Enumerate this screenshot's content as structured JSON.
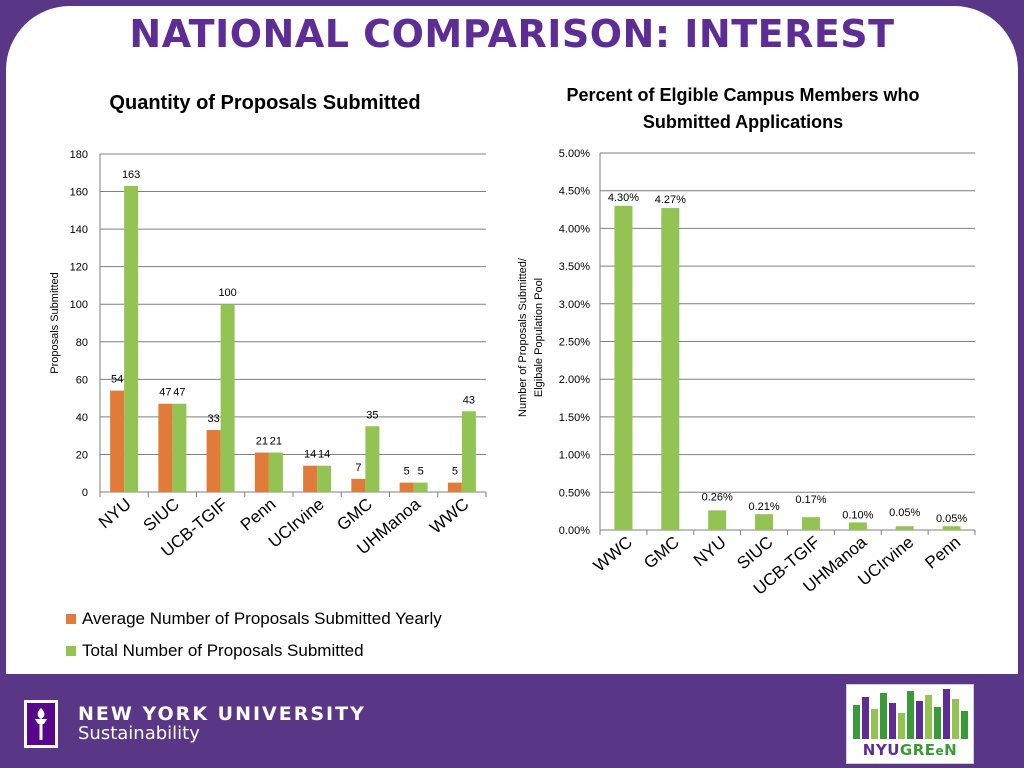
{
  "slide": {
    "title": "NATIONAL COMPARISON: INTEREST",
    "footer": {
      "org_name": "NEW YORK UNIVERSITY",
      "org_sub": "Sustainability",
      "logo_text_a": "NYU",
      "logo_text_b": "GRE",
      "logo_text_c": "e",
      "logo_text_d": "N"
    }
  },
  "colors": {
    "background": "#5a3786",
    "title": "#5e2c95",
    "series_orange": "#e07b39",
    "series_green": "#92c353",
    "grid": "#7f7f7f",
    "logo_purple": "#5e2c95",
    "logo_green": "#3a9a3a"
  },
  "chart_data": [
    {
      "type": "bar",
      "title": "Quantity of Proposals Submitted",
      "xlabel": "",
      "ylabel": "Proposals Submitted",
      "categories": [
        "NYU",
        "SIUC",
        "UCB-TGIF",
        "Penn",
        "UCIrvine",
        "GMC",
        "UHManoa",
        "WWC"
      ],
      "series": [
        {
          "name": "Average Number of Proposals Submitted Yearly",
          "color": "#e07b39",
          "values": [
            54,
            47,
            33,
            21,
            14,
            7,
            5,
            5
          ]
        },
        {
          "name": "Total Number of Proposals Submitted",
          "color": "#92c353",
          "values": [
            163,
            47,
            100,
            21,
            14,
            35,
            5,
            43
          ]
        }
      ],
      "ylim": [
        0,
        180
      ],
      "yticks": [
        0,
        20,
        40,
        60,
        80,
        100,
        120,
        140,
        160,
        180
      ],
      "ytick_labels": [
        "0",
        "20",
        "40",
        "60",
        "80",
        "100",
        "120",
        "140",
        "160",
        "180"
      ],
      "grid": true,
      "legend_position": "bottom-left"
    },
    {
      "type": "bar",
      "title": "Percent of Elgible Campus Members who Submitted Applications",
      "title_lines": [
        "Percent of Elgible Campus Members who",
        "Submitted Applications"
      ],
      "xlabel": "",
      "ylabel": "Number of Proposals Submitted/ Elgibale Population Pool",
      "ylabel_lines": [
        "Number of Proposals Submitted/",
        "Elgibale Population Pool"
      ],
      "categories": [
        "WWC",
        "GMC",
        "NYU",
        "SIUC",
        "UCB-TGIF",
        "UHManoa",
        "UCIrvine",
        "Penn"
      ],
      "series": [
        {
          "name": "",
          "color": "#92c353",
          "values": [
            4.3,
            4.27,
            0.26,
            0.21,
            0.17,
            0.1,
            0.05,
            0.05
          ],
          "labels": [
            "4.30%",
            "4.27%",
            "0.26%",
            "0.21%",
            "0.17%",
            "0.10%",
            "0.05%",
            "0.05%"
          ]
        }
      ],
      "ylim": [
        0,
        5
      ],
      "yticks": [
        0,
        0.5,
        1,
        1.5,
        2,
        2.5,
        3,
        3.5,
        4,
        4.5,
        5
      ],
      "ytick_labels": [
        "0.00%",
        "0.50%",
        "1.00%",
        "1.50%",
        "2.00%",
        "2.50%",
        "3.00%",
        "3.50%",
        "4.00%",
        "4.50%",
        "5.00%"
      ],
      "grid": true,
      "legend_position": "none"
    }
  ]
}
